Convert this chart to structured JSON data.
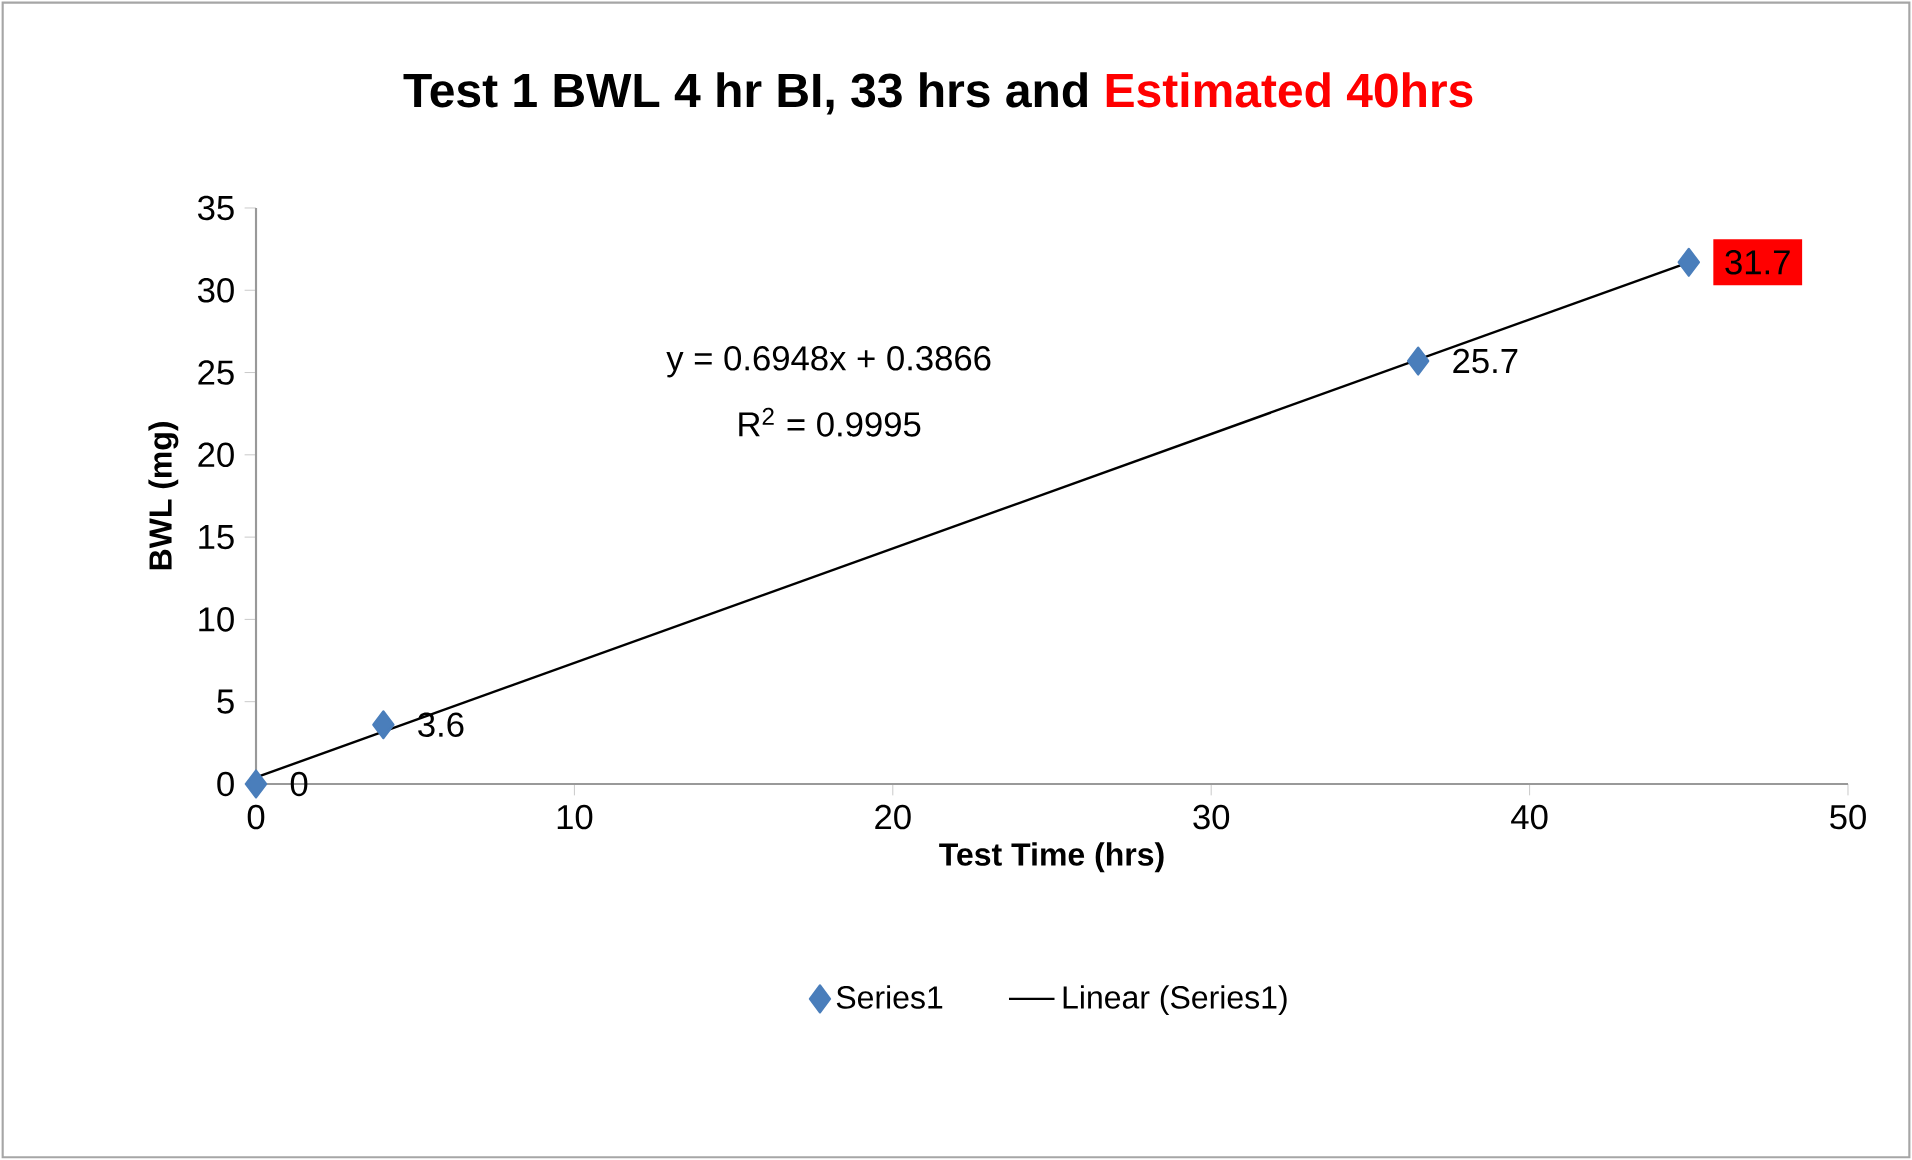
{
  "chart_data": {
    "type": "scatter",
    "title": "Test 1 BWL 4 hr BI, 33 hrs and",
    "subtitle": "Estimated 40hrs",
    "xlabel": "Test Time (hrs)",
    "ylabel": "BWL (mg)",
    "series": [
      {
        "name": "Series1",
        "color": "#4a7ebb",
        "marker": "diamond",
        "x": [
          0,
          4,
          36.5,
          45
        ],
        "values": [
          0,
          3.6,
          25.7,
          31.7
        ],
        "value_labels": [
          "0",
          "3.6",
          "25.7",
          "31.7"
        ]
      },
      {
        "name": "Linear (Series1)",
        "type": "line",
        "color": "#000000",
        "marker": "none",
        "x": [
          0,
          45
        ],
        "values": [
          0.4,
          31.7
        ]
      }
    ],
    "annotations": [
      "y = 0.6948x + 0.3866",
      "R$^{2}$ = 0.9995"
    ],
    "legend": "bottom",
    "xlim": [
      0,
      50
    ],
    "ylim": [
      0,
      35
    ],
    "xticks": [
      0,
      10,
      20,
      30,
      40,
      50
    ],
    "yticks": [
      0,
      5,
      10,
      15,
      20,
      25,
      30,
      35
    ]
  }
}
